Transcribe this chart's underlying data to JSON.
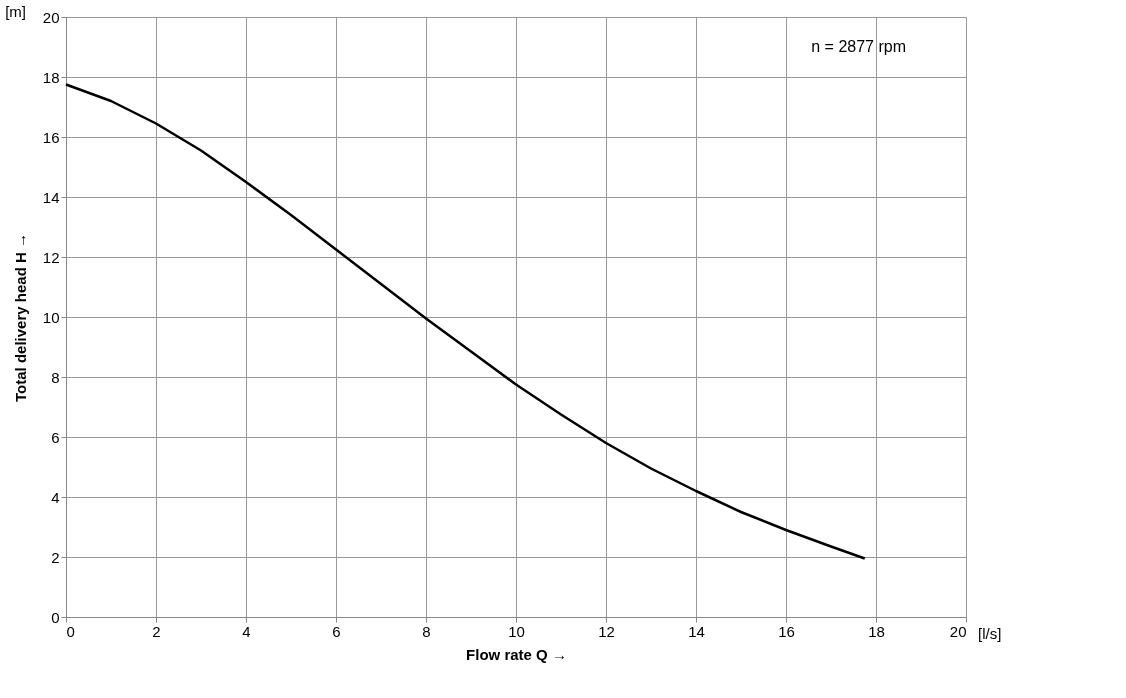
{
  "chart_data": {
    "type": "line",
    "xlabel": "Flow rate Q →",
    "ylabel": "Total delivery head H →",
    "annotations": [
      "[m]",
      "[l/s]",
      "n = 2877 rpm"
    ],
    "x": [
      0,
      1,
      2,
      3,
      4,
      5,
      6,
      7,
      8,
      9,
      10,
      11,
      12,
      13,
      14,
      15,
      16,
      17,
      17.75
    ],
    "series": [
      {
        "color": "#000000",
        "values": [
          17.75,
          17.2,
          16.45,
          15.55,
          14.5,
          13.4,
          12.25,
          11.1,
          9.95,
          8.85,
          7.75,
          6.75,
          5.8,
          4.95,
          4.2,
          3.5,
          2.9,
          2.35,
          1.95
        ]
      }
    ],
    "xlim": [
      0,
      20
    ],
    "ylim": [
      0,
      20
    ],
    "xticks": [
      0,
      2,
      4,
      6,
      8,
      10,
      12,
      14,
      16,
      18,
      20
    ],
    "yticks": [
      0,
      2,
      4,
      6,
      8,
      10,
      12,
      14,
      16,
      18,
      20
    ],
    "grid": true,
    "marker": "none",
    "line_style": "solid"
  }
}
